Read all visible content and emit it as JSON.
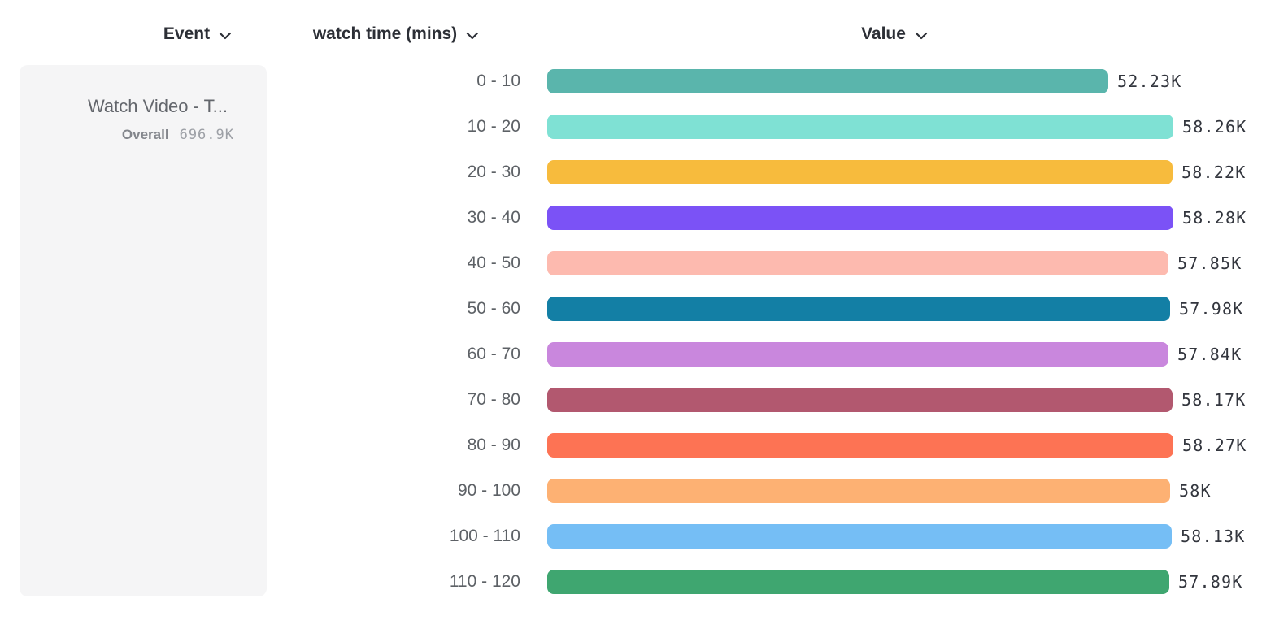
{
  "header": {
    "columns": [
      {
        "id": "event",
        "label": "Event"
      },
      {
        "id": "watch-time",
        "label": "watch time (mins)"
      },
      {
        "id": "value",
        "label": "Value"
      }
    ]
  },
  "event_card": {
    "title": "Watch Video - T...",
    "overall_label": "Overall",
    "overall_value": "696.9K"
  },
  "chart_data": {
    "type": "bar",
    "orientation": "horizontal",
    "title": "",
    "xlabel": "Value",
    "ylabel": "watch time (mins)",
    "categories": [
      "0 - 10",
      "10 - 20",
      "20 - 30",
      "30 - 40",
      "40 - 50",
      "50 - 60",
      "60 - 70",
      "70 - 80",
      "80 - 90",
      "90 - 100",
      "100 - 110",
      "110 - 120"
    ],
    "values": [
      52230,
      58260,
      58220,
      58280,
      57850,
      57980,
      57840,
      58170,
      58270,
      58000,
      58130,
      57890
    ],
    "value_labels": [
      "52.23K",
      "58.26K",
      "58.22K",
      "58.28K",
      "57.85K",
      "57.98K",
      "57.84K",
      "58.17K",
      "58.27K",
      "58K",
      "58.13K",
      "57.89K"
    ],
    "bar_colors": [
      "#5ab5ac",
      "#7fe1d4",
      "#f7bb3d",
      "#7b52f6",
      "#fdbaaf",
      "#137fa5",
      "#c987dd",
      "#b2586f",
      "#fd7354",
      "#fdb173",
      "#75bef5",
      "#3fa670"
    ],
    "xlim": [
      0,
      58280
    ],
    "grid": false,
    "legend": false
  },
  "colors": {
    "header_text": "#2c2f36",
    "bucket_label_text": "#5d6166",
    "value_label_text": "#33363e",
    "card_background": "#f5f5f6",
    "card_title_text": "#63666c",
    "overall_label_text": "#83868c",
    "overall_value_text": "#9da0a6"
  }
}
